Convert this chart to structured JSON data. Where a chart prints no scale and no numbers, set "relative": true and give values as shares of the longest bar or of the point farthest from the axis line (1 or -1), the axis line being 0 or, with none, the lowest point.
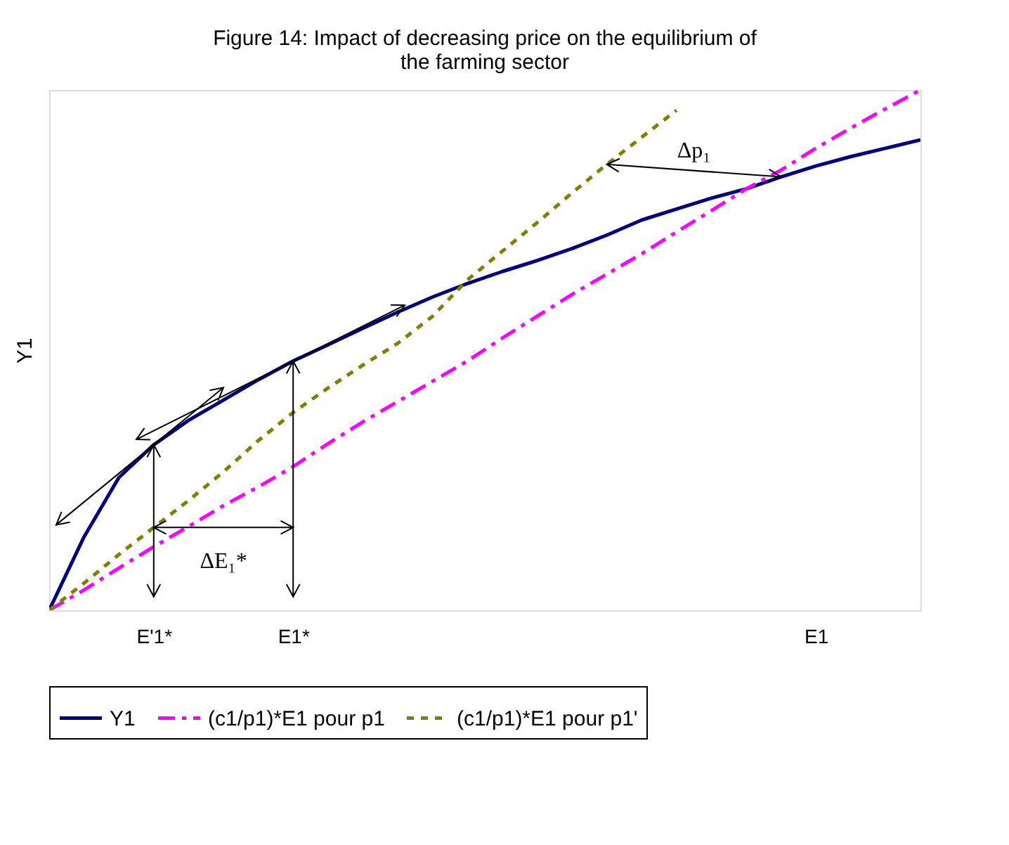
{
  "chart_data": {
    "type": "line",
    "title": "Figure 14: Impact of decreasing price on the equilibrium of the farming sector",
    "ylabel": "Y1",
    "relative": true,
    "grid": false,
    "legend": "bottom",
    "marker": "none",
    "categories": [
      null,
      null,
      null,
      "E'1*",
      null,
      null,
      null,
      "E1*",
      null,
      null,
      null,
      null,
      null,
      null,
      null,
      null,
      null,
      null,
      null,
      null,
      null,
      null,
      "E1",
      null,
      null,
      null
    ],
    "series": [
      {
        "name": "Y1",
        "color": "#000080",
        "line_style": "solid",
        "values": [
          0,
          0.141,
          0.255,
          0.318,
          0.365,
          0.404,
          0.443,
          0.479,
          0.51,
          0.542,
          0.573,
          0.602,
          0.628,
          0.651,
          0.672,
          0.695,
          0.721,
          0.75,
          0.771,
          0.792,
          0.81,
          0.833,
          0.854,
          0.872,
          0.888,
          0.904
        ]
      },
      {
        "name": "(c1/p1)*E1 pour p1",
        "color": "#ff00ff",
        "line_style": "dashed",
        "values": [
          0,
          0.039,
          0.081,
          0.122,
          0.161,
          0.201,
          0.237,
          0.276,
          0.32,
          0.362,
          0.401,
          0.44,
          0.479,
          0.523,
          0.565,
          0.607,
          0.646,
          0.685,
          0.727,
          0.768,
          0.81,
          0.846,
          0.888,
          0.927,
          0.964,
          1.0
        ]
      },
      {
        "name": "(c1/p1)*E1 pour p1'",
        "color": "#808000",
        "line_style": "dotted",
        "values": [
          0,
          0.052,
          0.107,
          0.159,
          0.211,
          0.266,
          0.326,
          0.38,
          0.427,
          0.471,
          0.513,
          0.565,
          0.635,
          0.69,
          0.745,
          0.802,
          0.857,
          0.909,
          0.961,
          null,
          null,
          null,
          null,
          null,
          null,
          null
        ]
      }
    ],
    "annotations": [
      "ΔE₁*",
      "Δp₁"
    ]
  }
}
